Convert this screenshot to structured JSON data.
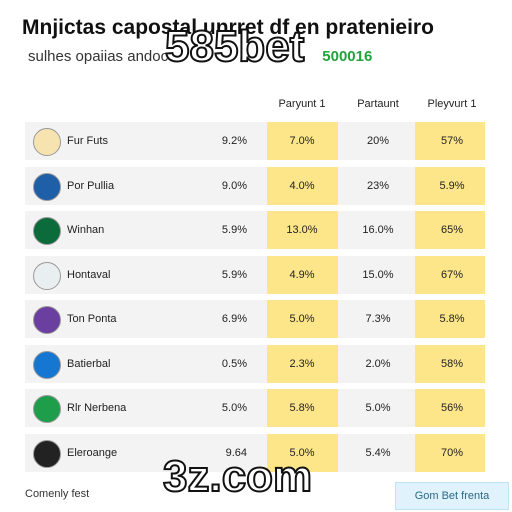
{
  "header": {
    "title": "Mnjictas capostal unrret df en pratenieiro",
    "subtitle": "sulhes opaiias andoc",
    "subtitle_code": "500016"
  },
  "watermarks": [
    "585bet",
    "3z.com"
  ],
  "table": {
    "columns": [
      "Paryunt 1",
      "Partaunt",
      "Pleyvurt 1"
    ],
    "rows": [
      [
        "Fur Futs",
        "9.2%",
        "7.0%",
        "20%",
        "57%"
      ],
      [
        "Por Pullia",
        "9.0%",
        "4.0%",
        "23%",
        "5.9%"
      ],
      [
        "Winhan",
        "5.9%",
        "13.0%",
        "16.0%",
        "65%"
      ],
      [
        "Hontaval",
        "5.9%",
        "4.9%",
        "15.0%",
        "67%"
      ],
      [
        "Ton Ponta",
        "6.9%",
        "5.0%",
        "7.3%",
        "5.8%"
      ],
      [
        "Batierbal",
        "0.5%",
        "2.3%",
        "2.0%",
        "58%"
      ],
      [
        "Rlr Nerbena",
        "5.0%",
        "5.8%",
        "5.0%",
        "56%"
      ],
      [
        "Eleroange",
        "9.64",
        "5.0%",
        "5.4%",
        "70%"
      ]
    ]
  },
  "footer": {
    "text": "Comenly fest",
    "button": "Gom Bet frenta"
  }
}
